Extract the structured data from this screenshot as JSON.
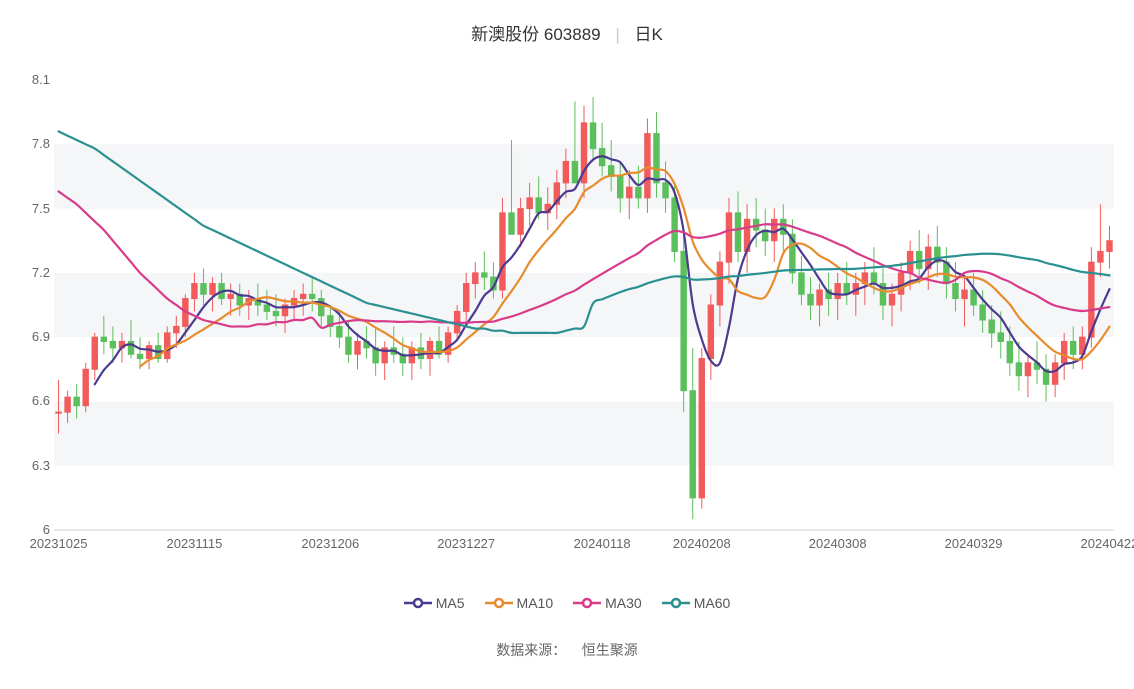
{
  "title": {
    "stock_name": "新澳股份",
    "stock_code": "603889",
    "chart_type": "日K"
  },
  "chart": {
    "type": "candlestick",
    "background_color": "#ffffff",
    "grid_band_color": "#f5f6f7",
    "grid_line_color": "#e8e8e8",
    "axis_text_color": "#666666",
    "axis_fontsize": 13,
    "y_axis": {
      "min": 6.0,
      "max": 8.1,
      "ticks": [
        6,
        6.3,
        6.6,
        6.9,
        7.2,
        7.5,
        7.8,
        8.1
      ]
    },
    "x_axis": {
      "labels": [
        "20231025",
        "20231115",
        "20231206",
        "20231227",
        "20240118",
        "20240208",
        "20240308",
        "20240329",
        "20240422"
      ],
      "label_positions": [
        0,
        15,
        30,
        45,
        60,
        71,
        86,
        101,
        116
      ]
    },
    "up_color": "#f15b5b",
    "down_color": "#5bbf5b",
    "candle_border_up": "#f15b5b",
    "candle_border_down": "#5bbf5b",
    "candles": [
      {
        "o": 6.55,
        "h": 6.7,
        "l": 6.45,
        "c": 6.55
      },
      {
        "o": 6.55,
        "h": 6.65,
        "l": 6.5,
        "c": 6.62
      },
      {
        "o": 6.62,
        "h": 6.68,
        "l": 6.52,
        "c": 6.58
      },
      {
        "o": 6.58,
        "h": 6.78,
        "l": 6.55,
        "c": 6.75
      },
      {
        "o": 6.75,
        "h": 6.92,
        "l": 6.7,
        "c": 6.9
      },
      {
        "o": 6.9,
        "h": 7.0,
        "l": 6.82,
        "c": 6.88
      },
      {
        "o": 6.88,
        "h": 6.95,
        "l": 6.78,
        "c": 6.85
      },
      {
        "o": 6.85,
        "h": 6.92,
        "l": 6.78,
        "c": 6.88
      },
      {
        "o": 6.88,
        "h": 6.98,
        "l": 6.8,
        "c": 6.82
      },
      {
        "o": 6.82,
        "h": 6.9,
        "l": 6.75,
        "c": 6.8
      },
      {
        "o": 6.8,
        "h": 6.88,
        "l": 6.75,
        "c": 6.86
      },
      {
        "o": 6.86,
        "h": 6.92,
        "l": 6.78,
        "c": 6.8
      },
      {
        "o": 6.8,
        "h": 6.95,
        "l": 6.78,
        "c": 6.92
      },
      {
        "o": 6.92,
        "h": 7.0,
        "l": 6.85,
        "c": 6.95
      },
      {
        "o": 6.95,
        "h": 7.1,
        "l": 6.9,
        "c": 7.08
      },
      {
        "o": 7.08,
        "h": 7.2,
        "l": 7.02,
        "c": 7.15
      },
      {
        "o": 7.15,
        "h": 7.22,
        "l": 7.05,
        "c": 7.1
      },
      {
        "o": 7.1,
        "h": 7.18,
        "l": 7.02,
        "c": 7.15
      },
      {
        "o": 7.15,
        "h": 7.2,
        "l": 7.05,
        "c": 7.08
      },
      {
        "o": 7.08,
        "h": 7.15,
        "l": 7.0,
        "c": 7.1
      },
      {
        "o": 7.1,
        "h": 7.15,
        "l": 7.0,
        "c": 7.05
      },
      {
        "o": 7.05,
        "h": 7.12,
        "l": 6.98,
        "c": 7.08
      },
      {
        "o": 7.08,
        "h": 7.15,
        "l": 7.0,
        "c": 7.05
      },
      {
        "o": 7.05,
        "h": 7.12,
        "l": 6.98,
        "c": 7.02
      },
      {
        "o": 7.02,
        "h": 7.1,
        "l": 6.95,
        "c": 7.0
      },
      {
        "o": 7.0,
        "h": 7.08,
        "l": 6.92,
        "c": 7.05
      },
      {
        "o": 7.05,
        "h": 7.12,
        "l": 6.98,
        "c": 7.08
      },
      {
        "o": 7.08,
        "h": 7.15,
        "l": 7.0,
        "c": 7.1
      },
      {
        "o": 7.1,
        "h": 7.18,
        "l": 7.02,
        "c": 7.08
      },
      {
        "o": 7.08,
        "h": 7.12,
        "l": 6.95,
        "c": 7.0
      },
      {
        "o": 7.0,
        "h": 7.05,
        "l": 6.9,
        "c": 6.95
      },
      {
        "o": 6.95,
        "h": 7.02,
        "l": 6.85,
        "c": 6.9
      },
      {
        "o": 6.9,
        "h": 6.98,
        "l": 6.78,
        "c": 6.82
      },
      {
        "o": 6.82,
        "h": 6.92,
        "l": 6.75,
        "c": 6.88
      },
      {
        "o": 6.88,
        "h": 6.95,
        "l": 6.8,
        "c": 6.85
      },
      {
        "o": 6.85,
        "h": 6.95,
        "l": 6.72,
        "c": 6.78
      },
      {
        "o": 6.78,
        "h": 6.88,
        "l": 6.7,
        "c": 6.85
      },
      {
        "o": 6.85,
        "h": 6.95,
        "l": 6.78,
        "c": 6.82
      },
      {
        "o": 6.82,
        "h": 6.9,
        "l": 6.72,
        "c": 6.78
      },
      {
        "o": 6.78,
        "h": 6.88,
        "l": 6.7,
        "c": 6.85
      },
      {
        "o": 6.85,
        "h": 6.92,
        "l": 6.75,
        "c": 6.8
      },
      {
        "o": 6.8,
        "h": 6.9,
        "l": 6.72,
        "c": 6.88
      },
      {
        "o": 6.88,
        "h": 6.95,
        "l": 6.8,
        "c": 6.82
      },
      {
        "o": 6.82,
        "h": 6.95,
        "l": 6.78,
        "c": 6.92
      },
      {
        "o": 6.92,
        "h": 7.05,
        "l": 6.88,
        "c": 7.02
      },
      {
        "o": 7.02,
        "h": 7.2,
        "l": 6.95,
        "c": 7.15
      },
      {
        "o": 7.15,
        "h": 7.25,
        "l": 7.08,
        "c": 7.2
      },
      {
        "o": 7.2,
        "h": 7.3,
        "l": 7.12,
        "c": 7.18
      },
      {
        "o": 7.18,
        "h": 7.25,
        "l": 7.08,
        "c": 7.12
      },
      {
        "o": 7.12,
        "h": 7.55,
        "l": 7.08,
        "c": 7.48
      },
      {
        "o": 7.48,
        "h": 7.82,
        "l": 7.4,
        "c": 7.38
      },
      {
        "o": 7.38,
        "h": 7.55,
        "l": 7.32,
        "c": 7.5
      },
      {
        "o": 7.5,
        "h": 7.62,
        "l": 7.42,
        "c": 7.55
      },
      {
        "o": 7.55,
        "h": 7.65,
        "l": 7.45,
        "c": 7.48
      },
      {
        "o": 7.48,
        "h": 7.6,
        "l": 7.4,
        "c": 7.52
      },
      {
        "o": 7.52,
        "h": 7.68,
        "l": 7.45,
        "c": 7.62
      },
      {
        "o": 7.62,
        "h": 7.78,
        "l": 7.55,
        "c": 7.72
      },
      {
        "o": 7.72,
        "h": 8.0,
        "l": 7.65,
        "c": 7.62
      },
      {
        "o": 7.62,
        "h": 7.98,
        "l": 7.55,
        "c": 7.9
      },
      {
        "o": 7.9,
        "h": 8.02,
        "l": 7.72,
        "c": 7.78
      },
      {
        "o": 7.78,
        "h": 7.9,
        "l": 7.65,
        "c": 7.7
      },
      {
        "o": 7.7,
        "h": 7.82,
        "l": 7.58,
        "c": 7.65
      },
      {
        "o": 7.65,
        "h": 7.72,
        "l": 7.48,
        "c": 7.55
      },
      {
        "o": 7.55,
        "h": 7.68,
        "l": 7.45,
        "c": 7.6
      },
      {
        "o": 7.6,
        "h": 7.7,
        "l": 7.5,
        "c": 7.55
      },
      {
        "o": 7.55,
        "h": 7.92,
        "l": 7.48,
        "c": 7.85
      },
      {
        "o": 7.85,
        "h": 7.95,
        "l": 7.55,
        "c": 7.62
      },
      {
        "o": 7.62,
        "h": 7.72,
        "l": 7.48,
        "c": 7.55
      },
      {
        "o": 7.55,
        "h": 7.62,
        "l": 7.25,
        "c": 7.3
      },
      {
        "o": 7.3,
        "h": 7.38,
        "l": 6.55,
        "c": 6.65
      },
      {
        "o": 6.65,
        "h": 6.85,
        "l": 6.05,
        "c": 6.15
      },
      {
        "o": 6.15,
        "h": 6.85,
        "l": 6.1,
        "c": 6.8
      },
      {
        "o": 6.8,
        "h": 7.1,
        "l": 6.7,
        "c": 7.05
      },
      {
        "o": 7.05,
        "h": 7.3,
        "l": 6.95,
        "c": 7.25
      },
      {
        "o": 7.25,
        "h": 7.55,
        "l": 7.15,
        "c": 7.48
      },
      {
        "o": 7.48,
        "h": 7.58,
        "l": 7.25,
        "c": 7.3
      },
      {
        "o": 7.3,
        "h": 7.52,
        "l": 7.2,
        "c": 7.45
      },
      {
        "o": 7.45,
        "h": 7.55,
        "l": 7.32,
        "c": 7.4
      },
      {
        "o": 7.4,
        "h": 7.5,
        "l": 7.28,
        "c": 7.35
      },
      {
        "o": 7.35,
        "h": 7.5,
        "l": 7.25,
        "c": 7.45
      },
      {
        "o": 7.45,
        "h": 7.52,
        "l": 7.3,
        "c": 7.38
      },
      {
        "o": 7.38,
        "h": 7.45,
        "l": 7.15,
        "c": 7.2
      },
      {
        "o": 7.2,
        "h": 7.28,
        "l": 7.05,
        "c": 7.1
      },
      {
        "o": 7.1,
        "h": 7.18,
        "l": 6.98,
        "c": 7.05
      },
      {
        "o": 7.05,
        "h": 7.15,
        "l": 6.95,
        "c": 7.12
      },
      {
        "o": 7.12,
        "h": 7.2,
        "l": 7.0,
        "c": 7.08
      },
      {
        "o": 7.08,
        "h": 7.2,
        "l": 6.98,
        "c": 7.15
      },
      {
        "o": 7.15,
        "h": 7.25,
        "l": 7.05,
        "c": 7.1
      },
      {
        "o": 7.1,
        "h": 7.2,
        "l": 7.0,
        "c": 7.15
      },
      {
        "o": 7.15,
        "h": 7.25,
        "l": 7.05,
        "c": 7.2
      },
      {
        "o": 7.2,
        "h": 7.32,
        "l": 7.1,
        "c": 7.15
      },
      {
        "o": 7.15,
        "h": 7.22,
        "l": 6.98,
        "c": 7.05
      },
      {
        "o": 7.05,
        "h": 7.15,
        "l": 6.95,
        "c": 7.1
      },
      {
        "o": 7.1,
        "h": 7.25,
        "l": 7.02,
        "c": 7.2
      },
      {
        "o": 7.2,
        "h": 7.35,
        "l": 7.12,
        "c": 7.3
      },
      {
        "o": 7.3,
        "h": 7.4,
        "l": 7.15,
        "c": 7.22
      },
      {
        "o": 7.22,
        "h": 7.38,
        "l": 7.12,
        "c": 7.32
      },
      {
        "o": 7.32,
        "h": 7.42,
        "l": 7.18,
        "c": 7.25
      },
      {
        "o": 7.25,
        "h": 7.32,
        "l": 7.08,
        "c": 7.15
      },
      {
        "o": 7.15,
        "h": 7.25,
        "l": 7.02,
        "c": 7.08
      },
      {
        "o": 7.08,
        "h": 7.18,
        "l": 6.95,
        "c": 7.12
      },
      {
        "o": 7.12,
        "h": 7.2,
        "l": 7.0,
        "c": 7.05
      },
      {
        "o": 7.05,
        "h": 7.12,
        "l": 6.92,
        "c": 6.98
      },
      {
        "o": 6.98,
        "h": 7.05,
        "l": 6.85,
        "c": 6.92
      },
      {
        "o": 6.92,
        "h": 7.02,
        "l": 6.8,
        "c": 6.88
      },
      {
        "o": 6.88,
        "h": 6.95,
        "l": 6.72,
        "c": 6.78
      },
      {
        "o": 6.78,
        "h": 6.88,
        "l": 6.65,
        "c": 6.72
      },
      {
        "o": 6.72,
        "h": 6.82,
        "l": 6.62,
        "c": 6.78
      },
      {
        "o": 6.78,
        "h": 6.88,
        "l": 6.68,
        "c": 6.75
      },
      {
        "o": 6.75,
        "h": 6.82,
        "l": 6.6,
        "c": 6.68
      },
      {
        "o": 6.68,
        "h": 6.82,
        "l": 6.62,
        "c": 6.78
      },
      {
        "o": 6.78,
        "h": 6.92,
        "l": 6.7,
        "c": 6.88
      },
      {
        "o": 6.88,
        "h": 6.95,
        "l": 6.75,
        "c": 6.82
      },
      {
        "o": 6.82,
        "h": 6.95,
        "l": 6.75,
        "c": 6.9
      },
      {
        "o": 6.9,
        "h": 7.32,
        "l": 6.85,
        "c": 7.25
      },
      {
        "o": 7.25,
        "h": 7.52,
        "l": 7.18,
        "c": 7.3
      },
      {
        "o": 7.3,
        "h": 7.42,
        "l": 7.22,
        "c": 7.35
      }
    ],
    "ma_lines": [
      {
        "name": "MA5",
        "color": "#4b3a8f",
        "width": 2.2,
        "period": 5
      },
      {
        "name": "MA10",
        "color": "#e88b2d",
        "width": 2.2,
        "period": 10
      },
      {
        "name": "MA30",
        "color": "#d83b8a",
        "width": 2.2,
        "period": 30
      },
      {
        "name": "MA60",
        "color": "#2a9090",
        "width": 2.2,
        "period": 60
      }
    ],
    "ma30_prefix": [
      7.58,
      7.55,
      7.52,
      7.48,
      7.44,
      7.4,
      7.35,
      7.3,
      7.25,
      7.2,
      7.16,
      7.12,
      7.08,
      7.05,
      7.02,
      7.0,
      6.98,
      6.97,
      6.96,
      6.95,
      6.95,
      6.95,
      6.96,
      6.96,
      6.97,
      6.97,
      6.98,
      6.98,
      6.99,
      6.99
    ],
    "ma60_prefix": [
      7.86,
      7.84,
      7.82,
      7.8,
      7.78,
      7.75,
      7.72,
      7.69,
      7.66,
      7.63,
      7.6,
      7.57,
      7.54,
      7.51,
      7.48,
      7.45,
      7.42,
      7.4,
      7.38,
      7.36,
      7.34,
      7.32,
      7.3,
      7.28,
      7.26,
      7.24,
      7.22,
      7.2,
      7.18,
      7.16,
      7.14,
      7.12,
      7.1,
      7.08,
      7.06,
      7.05,
      7.04,
      7.03,
      7.02,
      7.01,
      7.0,
      6.99,
      6.98,
      6.97,
      6.96,
      6.95,
      6.94,
      6.94,
      6.93,
      6.93,
      6.92,
      6.92,
      6.92,
      6.92,
      6.92,
      6.92,
      6.93,
      6.94,
      6.95,
      6.96
    ]
  },
  "legend": {
    "items": [
      {
        "label": "MA5",
        "color": "#4b3a8f"
      },
      {
        "label": "MA10",
        "color": "#e88b2d"
      },
      {
        "label": "MA30",
        "color": "#d83b8a"
      },
      {
        "label": "MA60",
        "color": "#2a9090"
      }
    ]
  },
  "source": {
    "prefix": "数据来源：",
    "name": "恒生聚源"
  }
}
